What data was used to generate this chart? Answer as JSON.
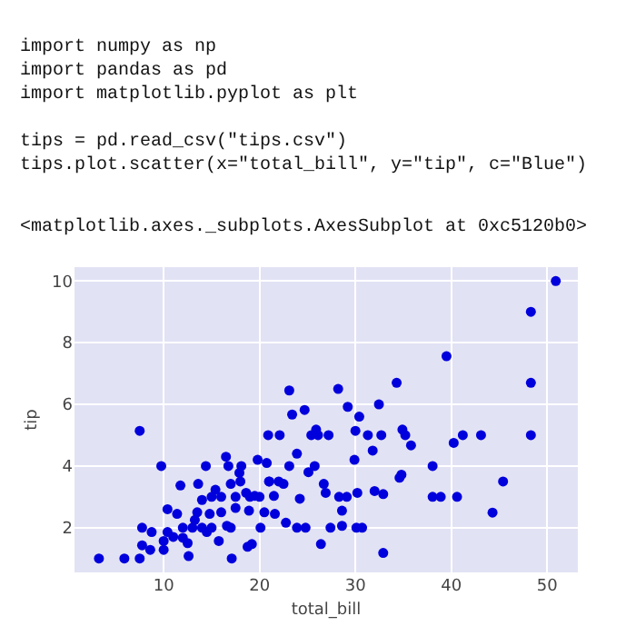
{
  "chart_data": {
    "type": "scatter",
    "xlabel": "total_bill",
    "ylabel": "tip",
    "annotations": [
      "import numpy as np\nimport pandas as pd\nimport matplotlib.pyplot as plt\n\ntips = pd.read_csv(\"tips.csv\")\ntips.plot.scatter(x=\"total_bill\", y=\"tip\", c=\"Blue\")",
      "<matplotlib.axes._subplots.AxesSubplot at 0xc5120b0>"
    ],
    "xlim": [
      0.7,
      53.2
    ],
    "ylim": [
      0.55,
      10.45
    ],
    "xticks": [
      10,
      20,
      30,
      40,
      50
    ],
    "yticks": [
      2,
      4,
      6,
      8,
      10
    ],
    "grid": true,
    "marker": "circle",
    "series": [
      {
        "color": "#0000dd",
        "x": [
          3.25,
          5.9,
          7.5,
          7.5,
          7.75,
          7.75,
          8.75,
          8.6,
          9.75,
          10,
          10.4,
          10.4,
          10,
          11.4,
          11.75,
          12,
          12,
          12.6,
          13.25,
          13.6,
          14,
          14.4,
          14.5,
          14.8,
          15.4,
          15.75,
          16,
          16.5,
          16.6,
          16.75,
          17,
          17.1,
          17.5,
          17.9,
          18.1,
          18.6,
          18.75,
          19.2,
          18.9,
          19.5,
          19.8,
          20.1,
          20.75,
          20.9,
          21,
          21.5,
          21.6,
          22.1,
          22.5,
          22.75,
          23.1,
          23.4,
          23.1,
          23.9,
          24.2,
          23.9,
          24.7,
          24.8,
          25.1,
          25.4,
          25.75,
          25.9,
          26.4,
          26.7,
          26.1,
          26.9,
          27.4,
          27.2,
          28.2,
          28.3,
          28.6,
          28.6,
          29.1,
          29.2,
          29.9,
          30.0,
          30.2,
          30.4,
          30.1,
          30.7,
          31.3,
          31.8,
          32.0,
          32.45,
          32.7,
          32.9,
          32.9,
          34.3,
          34.6,
          34.8,
          34.9,
          35.2,
          35.8,
          38.05,
          38.05,
          38.9,
          39.5,
          40.25,
          40.6,
          41.2,
          43.1,
          44.3,
          45.4,
          48.3,
          48.3,
          48.3,
          50.9,
          12.5,
          13,
          11,
          14,
          15,
          16,
          17,
          17.5,
          18,
          19,
          20,
          21,
          20.5,
          22,
          15,
          13.5
        ],
        "values": [
          1.0,
          1.0,
          1.0,
          5.14,
          2.0,
          1.43,
          1.86,
          1.28,
          4.0,
          1.57,
          1.86,
          2.6,
          1.28,
          2.45,
          3.37,
          1.67,
          2.0,
          1.08,
          2.25,
          3.42,
          2.9,
          4.0,
          1.86,
          2.45,
          3.23,
          1.57,
          3.0,
          4.3,
          2.06,
          4.0,
          3.42,
          1.0,
          2.64,
          3.78,
          4.0,
          3.13,
          1.38,
          1.47,
          2.55,
          3.03,
          4.2,
          2.0,
          4.1,
          5.0,
          3.5,
          3.03,
          2.45,
          5.0,
          3.42,
          2.16,
          6.45,
          5.67,
          4.0,
          4.4,
          2.94,
          2.0,
          5.82,
          2.0,
          3.8,
          5.0,
          4.0,
          5.18,
          1.47,
          3.42,
          5.0,
          3.13,
          2.0,
          5.0,
          6.5,
          3.0,
          2.55,
          2.06,
          3.0,
          5.92,
          4.2,
          5.14,
          3.13,
          5.6,
          2.0,
          2.0,
          5.0,
          4.5,
          3.19,
          6.0,
          5.0,
          3.09,
          1.18,
          6.7,
          3.62,
          3.72,
          5.18,
          5.0,
          4.67,
          4.0,
          3.0,
          3.0,
          7.56,
          4.75,
          3.0,
          5.0,
          5.0,
          2.49,
          3.5,
          9.0,
          6.7,
          5.0,
          10.0,
          1.5,
          2.0,
          1.7,
          2.0,
          2.0,
          2.5,
          2.0,
          3.0,
          3.5,
          3.0,
          3.0,
          3.5,
          2.5,
          3.5,
          3.0,
          2.5
        ]
      }
    ]
  }
}
